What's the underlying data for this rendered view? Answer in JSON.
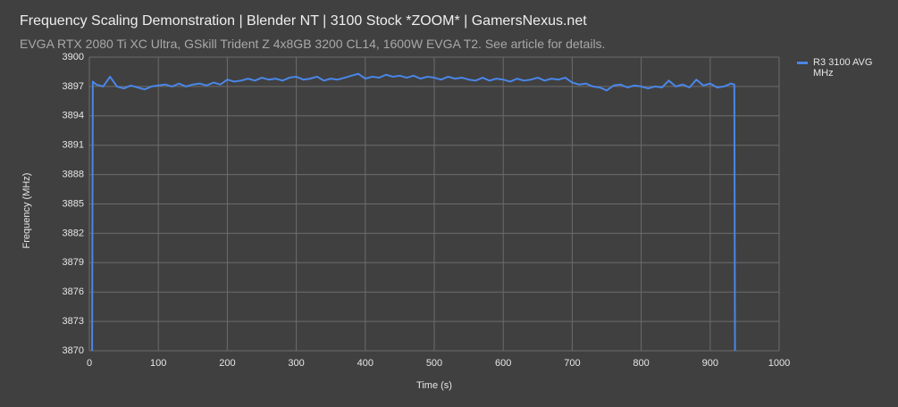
{
  "chart_data": {
    "type": "line",
    "title": "Frequency Scaling Demonstration | Blender NT | 3100 Stock *ZOOM* | GamersNexus.net",
    "subtitle": "EVGA RTX 2080 Ti XC Ultra, GSkill Trident Z 4x8GB 3200 CL14, 1600W EVGA T2. See article for details.",
    "x_label": "Time (s)",
    "y_label": "Frequency (MHz)",
    "x": [
      4,
      5,
      10,
      20,
      30,
      40,
      50,
      60,
      70,
      80,
      90,
      100,
      110,
      120,
      130,
      140,
      150,
      160,
      170,
      180,
      190,
      200,
      210,
      220,
      230,
      240,
      250,
      260,
      270,
      280,
      290,
      300,
      310,
      320,
      330,
      340,
      350,
      360,
      370,
      380,
      390,
      400,
      410,
      420,
      430,
      440,
      450,
      460,
      470,
      480,
      490,
      500,
      510,
      520,
      530,
      540,
      550,
      560,
      570,
      580,
      590,
      600,
      610,
      620,
      630,
      640,
      650,
      660,
      670,
      680,
      690,
      700,
      710,
      720,
      730,
      740,
      750,
      760,
      770,
      780,
      790,
      800,
      810,
      820,
      830,
      840,
      850,
      860,
      870,
      880,
      890,
      900,
      910,
      920,
      930,
      935,
      936
    ],
    "series": [
      {
        "name": "R3 3100 AVG MHz",
        "color": "#4a86e8",
        "values": [
          3870,
          3897.5,
          3897.2,
          3897.0,
          3898.0,
          3897.0,
          3896.8,
          3897.1,
          3896.9,
          3896.7,
          3897.0,
          3897.1,
          3897.2,
          3897.0,
          3897.3,
          3897.0,
          3897.2,
          3897.3,
          3897.1,
          3897.4,
          3897.2,
          3897.7,
          3897.5,
          3897.6,
          3897.8,
          3897.6,
          3897.9,
          3897.7,
          3897.8,
          3897.6,
          3897.9,
          3898.0,
          3897.7,
          3897.8,
          3898.0,
          3897.6,
          3897.8,
          3897.7,
          3897.9,
          3898.1,
          3898.3,
          3897.8,
          3898.0,
          3897.9,
          3898.2,
          3898.0,
          3898.1,
          3897.9,
          3898.1,
          3897.8,
          3898.0,
          3897.9,
          3897.7,
          3898.0,
          3897.8,
          3897.9,
          3897.7,
          3897.6,
          3897.9,
          3897.6,
          3897.8,
          3897.7,
          3897.5,
          3897.8,
          3897.6,
          3897.7,
          3897.9,
          3897.6,
          3897.8,
          3897.7,
          3897.9,
          3897.4,
          3897.2,
          3897.3,
          3897.0,
          3896.9,
          3896.6,
          3897.1,
          3897.2,
          3896.9,
          3897.1,
          3897.0,
          3896.8,
          3897.0,
          3896.9,
          3897.6,
          3897.0,
          3897.2,
          3896.9,
          3897.7,
          3897.1,
          3897.3,
          3896.9,
          3897.0,
          3897.3,
          3897.2,
          3870
        ]
      }
    ],
    "xlim": [
      0,
      1000
    ],
    "xticks": [
      0,
      100,
      200,
      300,
      400,
      500,
      600,
      700,
      800,
      900,
      1000
    ],
    "ylim": [
      3870,
      3900
    ],
    "yticks": [
      3870,
      3873,
      3876,
      3879,
      3882,
      3885,
      3888,
      3891,
      3894,
      3897,
      3900
    ],
    "grid": true,
    "legend": "right"
  }
}
